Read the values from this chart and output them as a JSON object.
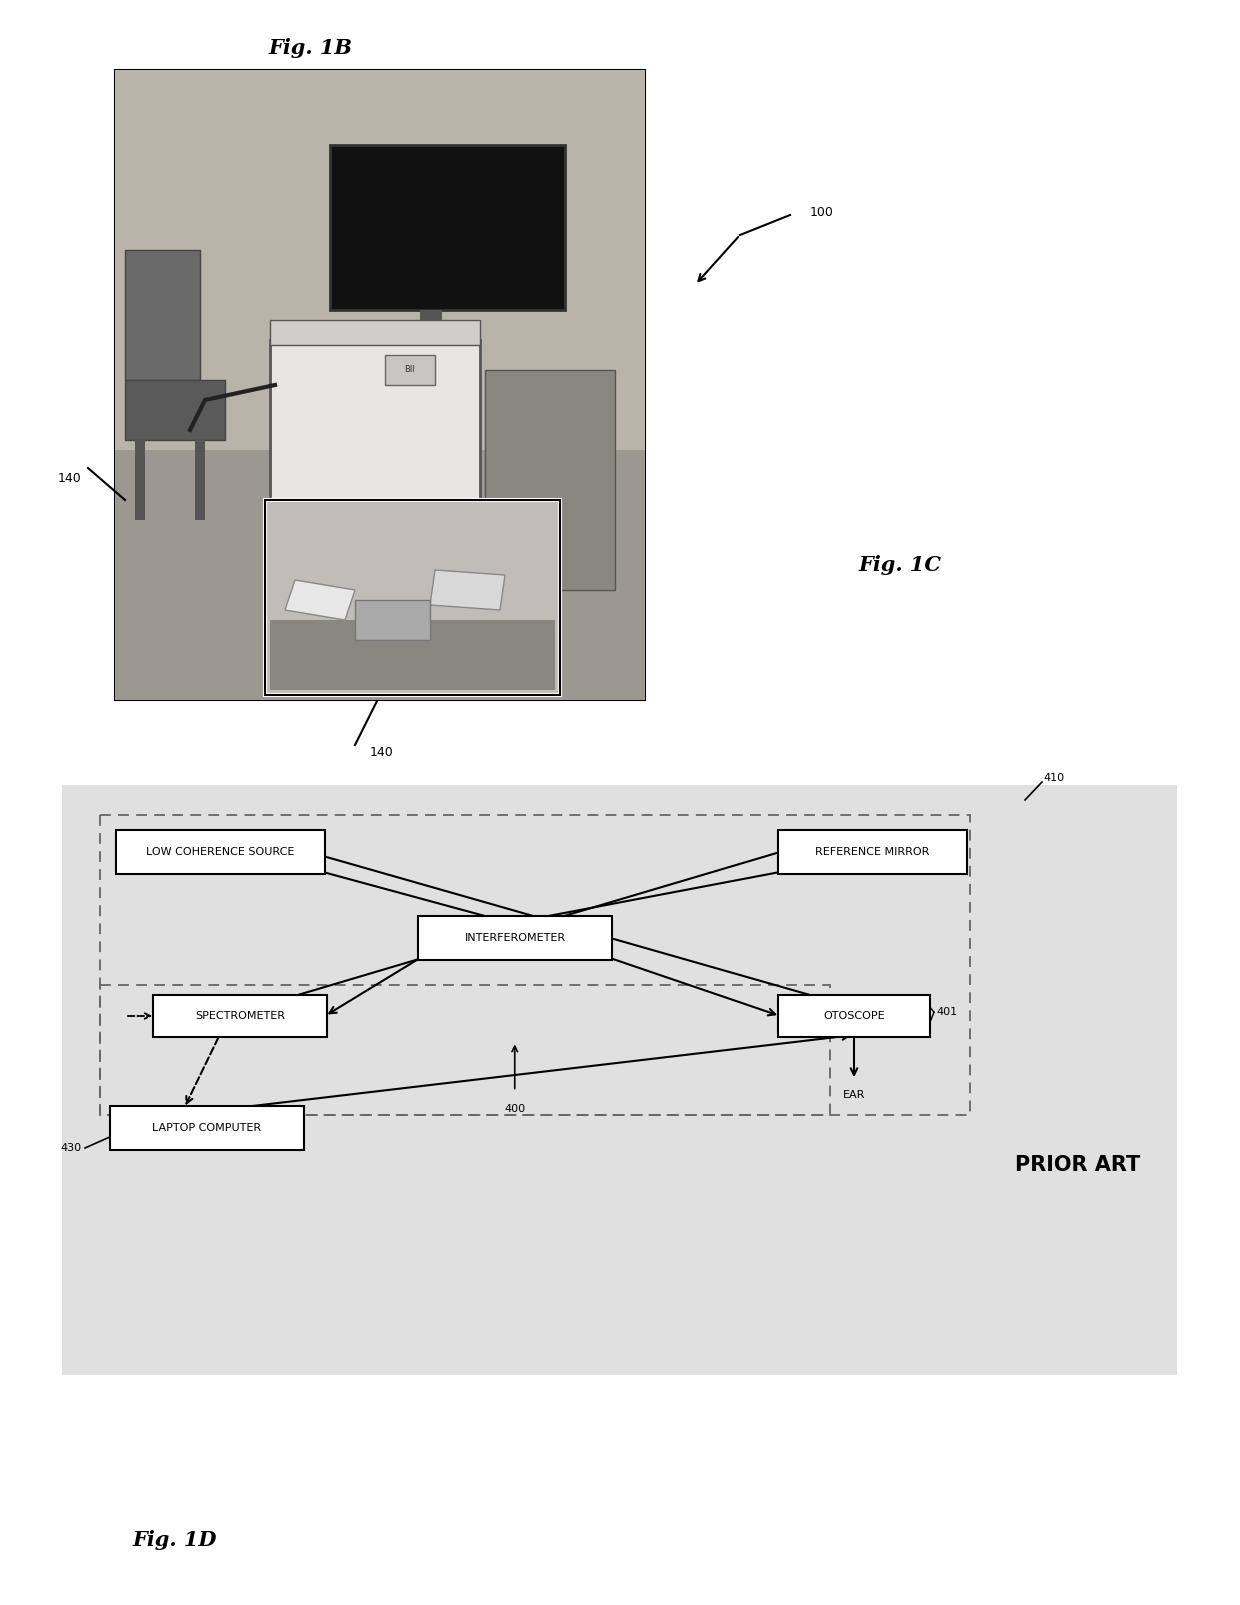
{
  "fig_title_1b": "Fig. 1B",
  "fig_title_1c": "Fig. 1C",
  "fig_title_1d": "Fig. 1D",
  "label_100": "100",
  "label_140_top": "140",
  "label_140_bottom": "140",
  "label_410": "410",
  "label_430": "430",
  "label_400": "400",
  "label_401": "401",
  "label_ear": "EAR",
  "label_prior_art": "PRIOR ART",
  "box_lcs": "LOW COHERENCE SOURCE",
  "box_ref_mirror": "REFERENCE MIRROR",
  "box_interferometer": "INTERFEROMETER",
  "box_spectrometer": "SPECTROMETER",
  "box_otoscope": "OTOSCOPE",
  "box_laptop": "LAPTOP COMPUTER",
  "bg_color": "#ffffff",
  "diagram_bg": "#e0e0e0",
  "font_size_boxes": 8.0,
  "font_size_labels": 9,
  "font_size_fig": 15,
  "font_size_prior_art": 15
}
